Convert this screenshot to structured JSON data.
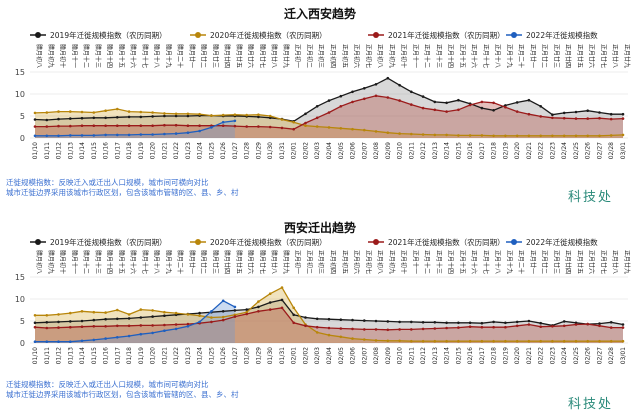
{
  "chart_data": [
    {
      "type": "area",
      "title": "迁入西安趋势",
      "legend": [
        {
          "name": "2019年迁徙规模指数（农历同期）",
          "color": "#1a1a1a"
        },
        {
          "name": "2020年迁徙规模指数（农历同期）",
          "color": "#b8860b"
        },
        {
          "name": "2021年迁徙规模指数（农历同期）",
          "color": "#9b1b1b"
        },
        {
          "name": "2022年迁徙规模指数",
          "color": "#1f5fbf"
        }
      ],
      "ylim": [
        0,
        15
      ],
      "yticks": [
        0,
        5,
        10,
        15
      ],
      "x_dates": [
        "01/10",
        "01/11",
        "01/12",
        "01/13",
        "01/14",
        "01/15",
        "01/16",
        "01/17",
        "01/18",
        "01/19",
        "01/20",
        "01/21",
        "01/22",
        "01/23",
        "01/24",
        "01/25",
        "01/26",
        "01/27",
        "01/28",
        "01/29",
        "01/30",
        "01/31",
        "02/01",
        "02/02",
        "02/03",
        "02/04",
        "02/05",
        "02/06",
        "02/07",
        "02/08",
        "02/09",
        "02/10",
        "02/11",
        "02/12",
        "02/13",
        "02/14",
        "02/15",
        "02/16",
        "02/17",
        "02/18",
        "02/19",
        "02/20",
        "02/21",
        "02/22",
        "02/23",
        "02/24",
        "02/25",
        "02/26",
        "02/27",
        "02/28",
        "03/01"
      ],
      "x_lunar": [
        "腊月初八",
        "腊月初九",
        "腊月初十",
        "腊月十一",
        "腊月十二",
        "腊月十三",
        "腊月十四",
        "腊月十五",
        "腊月十六",
        "腊月十七",
        "腊月十八",
        "腊月十九",
        "腊月二十",
        "腊月廿一",
        "腊月廿二",
        "腊月廿三",
        "腊月廿四",
        "腊月廿五",
        "腊月廿六",
        "腊月廿七",
        "腊月廿八",
        "腊月廿九",
        "正月初一",
        "正月初二",
        "正月初三",
        "正月初四",
        "正月初五",
        "正月初六",
        "正月初七",
        "正月初八",
        "正月初九",
        "正月初十",
        "正月十一",
        "正月十二",
        "正月十三",
        "正月十四",
        "正月十五",
        "正月十六",
        "正月十七",
        "正月十八",
        "正月十九",
        "正月二十",
        "正月廿一",
        "正月廿二",
        "正月廿三",
        "正月廿四",
        "正月廿五",
        "正月廿六",
        "正月廿七",
        "正月廿八",
        "正月廿九"
      ],
      "series": [
        {
          "name": "2019年迁徙规模指数（农历同期）",
          "color": "#1a1a1a",
          "values": [
            4.2,
            4.1,
            4.3,
            4.4,
            4.5,
            4.6,
            4.6,
            4.7,
            4.8,
            4.8,
            4.9,
            5.0,
            5.0,
            5.0,
            5.1,
            5.1,
            5.0,
            5.0,
            4.9,
            4.8,
            4.6,
            4.3,
            3.8,
            5.5,
            7.2,
            8.5,
            9.5,
            10.5,
            11.3,
            12.2,
            13.6,
            12.0,
            10.5,
            9.4,
            8.2,
            8.0,
            8.6,
            7.8,
            6.8,
            6.3,
            7.4,
            8.1,
            8.6,
            7.2,
            5.3,
            5.7,
            5.9,
            6.2,
            5.8,
            5.4,
            5.4
          ]
        },
        {
          "name": "2020年迁徙规模指数（农历同期）",
          "color": "#b8860b",
          "values": [
            5.7,
            5.8,
            6.0,
            6.0,
            5.9,
            5.8,
            6.2,
            6.6,
            6.0,
            5.9,
            5.8,
            5.6,
            5.5,
            5.5,
            5.4,
            5.1,
            5.2,
            5.3,
            5.2,
            5.3,
            5.0,
            4.2,
            3.6,
            2.8,
            2.6,
            2.4,
            2.2,
            2.0,
            1.8,
            1.5,
            1.2,
            1.0,
            0.9,
            0.8,
            0.7,
            0.7,
            0.6,
            0.6,
            0.6,
            0.5,
            0.5,
            0.5,
            0.5,
            0.5,
            0.5,
            0.5,
            0.5,
            0.5,
            0.5,
            0.6,
            0.7
          ]
        },
        {
          "name": "2021年迁徙规模指数（农历同期）",
          "color": "#9b1b1b",
          "values": [
            2.6,
            2.6,
            2.7,
            2.7,
            2.8,
            2.8,
            2.8,
            2.8,
            2.8,
            2.8,
            2.8,
            2.9,
            2.9,
            2.8,
            2.8,
            2.8,
            2.8,
            2.7,
            2.6,
            2.6,
            2.5,
            2.3,
            2.0,
            3.4,
            4.6,
            5.8,
            7.2,
            8.2,
            8.9,
            9.6,
            9.2,
            8.5,
            7.6,
            6.8,
            6.4,
            6.0,
            6.4,
            7.5,
            8.2,
            8.0,
            7.0,
            6.0,
            5.4,
            4.9,
            4.6,
            4.5,
            4.4,
            4.4,
            4.5,
            4.3,
            4.4
          ]
        },
        {
          "name": "2022年迁徙规模指数",
          "color": "#1f5fbf",
          "values": [
            0.5,
            0.5,
            0.5,
            0.6,
            0.6,
            0.6,
            0.7,
            0.7,
            0.7,
            0.8,
            0.8,
            0.9,
            1.0,
            1.2,
            1.6,
            2.4,
            3.6,
            3.9,
            null,
            null,
            null,
            null,
            null,
            null,
            null,
            null,
            null,
            null,
            null,
            null,
            null,
            null,
            null,
            null,
            null,
            null,
            null,
            null,
            null,
            null,
            null,
            null,
            null,
            null,
            null,
            null,
            null,
            null,
            null,
            null,
            null
          ]
        }
      ],
      "note": [
        "迁徙规模指数：反映迁入或迁出人口规模，城市间可横向对比",
        "城市迁徙边界采用该城市行政区划，包含该城市管辖的区、县、乡、村"
      ],
      "signature": "科技处"
    },
    {
      "type": "area",
      "title": "西安迁出趋势",
      "legend": [
        {
          "name": "2019年迁徙规模指数（农历同期）",
          "color": "#1a1a1a"
        },
        {
          "name": "2020年迁徙规模指数（农历同期）",
          "color": "#b8860b"
        },
        {
          "name": "2021年迁徙规模指数（农历同期）",
          "color": "#9b1b1b"
        },
        {
          "name": "2022年迁徙规模指数",
          "color": "#1f5fbf"
        }
      ],
      "ylim": [
        0,
        15
      ],
      "yticks": [
        0,
        5,
        10,
        15
      ],
      "x_dates": [
        "01/10",
        "01/11",
        "01/12",
        "01/13",
        "01/14",
        "01/15",
        "01/16",
        "01/17",
        "01/18",
        "01/19",
        "01/20",
        "01/21",
        "01/22",
        "01/23",
        "01/24",
        "01/25",
        "01/26",
        "01/27",
        "01/28",
        "01/29",
        "01/30",
        "01/31",
        "02/01",
        "02/02",
        "02/03",
        "02/04",
        "02/05",
        "02/06",
        "02/07",
        "02/08",
        "02/09",
        "02/10",
        "02/11",
        "02/12",
        "02/13",
        "02/14",
        "02/15",
        "02/16",
        "02/17",
        "02/18",
        "02/19",
        "02/20",
        "02/21",
        "02/22",
        "02/23",
        "02/24",
        "02/25",
        "02/26",
        "02/27",
        "02/28",
        "03/01"
      ],
      "x_lunar": [
        "腊月初八",
        "腊月初九",
        "腊月初十",
        "腊月十一",
        "腊月十二",
        "腊月十三",
        "腊月十四",
        "腊月十五",
        "腊月十六",
        "腊月十七",
        "腊月十八",
        "腊月十九",
        "腊月二十",
        "腊月廿一",
        "腊月廿二",
        "腊月廿三",
        "腊月廿四",
        "腊月廿五",
        "腊月廿六",
        "腊月廿七",
        "腊月廿八",
        "腊月廿九",
        "正月初一",
        "正月初二",
        "正月初三",
        "正月初四",
        "正月初五",
        "正月初六",
        "正月初七",
        "正月初八",
        "正月初九",
        "正月初十",
        "正月十一",
        "正月十二",
        "正月十三",
        "正月十四",
        "正月十五",
        "正月十六",
        "正月十七",
        "正月十八",
        "正月十九",
        "正月二十",
        "正月廿一",
        "正月廿二",
        "正月廿三",
        "正月廿四",
        "正月廿五",
        "正月廿六",
        "正月廿七",
        "正月廿八",
        "正月廿九"
      ],
      "series": [
        {
          "name": "2019年迁徙规模指数（农历同期）",
          "color": "#1a1a1a",
          "values": [
            4.6,
            4.7,
            4.8,
            4.9,
            5.0,
            5.2,
            5.4,
            5.5,
            5.6,
            5.8,
            6.0,
            6.2,
            6.4,
            6.6,
            6.8,
            7.0,
            7.2,
            7.4,
            7.6,
            8.2,
            9.2,
            9.8,
            6.4,
            5.8,
            5.5,
            5.4,
            5.3,
            5.2,
            5.1,
            5.0,
            4.9,
            4.8,
            4.8,
            4.7,
            4.7,
            4.6,
            4.6,
            4.6,
            4.5,
            4.8,
            4.6,
            4.8,
            5.0,
            4.5,
            4.0,
            4.9,
            4.6,
            4.3,
            4.4,
            4.7,
            4.2
          ]
        },
        {
          "name": "2020年迁徙规模指数（农历同期）",
          "color": "#b8860b",
          "values": [
            6.3,
            6.3,
            6.5,
            6.8,
            7.2,
            7.0,
            6.9,
            7.5,
            6.5,
            7.6,
            7.4,
            7.0,
            6.8,
            6.5,
            6.2,
            5.8,
            5.9,
            6.4,
            7.0,
            9.4,
            11.2,
            12.6,
            8.0,
            4.2,
            2.4,
            1.8,
            1.4,
            1.0,
            0.8,
            0.6,
            0.5,
            0.5,
            0.4,
            0.4,
            0.4,
            0.4,
            0.4,
            0.4,
            0.4,
            0.4,
            0.4,
            0.4,
            0.4,
            0.4,
            0.4,
            0.4,
            0.4,
            0.4,
            0.4,
            0.4,
            0.4
          ]
        },
        {
          "name": "2021年迁徙规模指数（农历同期）",
          "color": "#9b1b1b",
          "values": [
            3.6,
            3.4,
            3.5,
            3.6,
            3.7,
            3.8,
            3.8,
            3.9,
            3.9,
            4.0,
            4.0,
            4.1,
            4.2,
            4.3,
            4.5,
            4.8,
            5.2,
            6.0,
            6.6,
            7.2,
            7.6,
            8.0,
            4.6,
            3.9,
            3.6,
            3.4,
            3.3,
            3.2,
            3.1,
            3.1,
            3.0,
            3.1,
            3.1,
            3.2,
            3.3,
            3.4,
            3.5,
            3.7,
            3.6,
            3.6,
            3.6,
            3.9,
            4.2,
            3.7,
            3.8,
            3.9,
            4.2,
            4.3,
            3.9,
            3.5,
            3.5
          ]
        },
        {
          "name": "2022年迁徙规模指数",
          "color": "#1f5fbf",
          "values": [
            0.3,
            0.3,
            0.3,
            0.3,
            0.5,
            0.7,
            1.0,
            1.3,
            1.6,
            2.0,
            2.3,
            2.8,
            3.2,
            3.8,
            4.8,
            7.2,
            9.6,
            8.2,
            null,
            null,
            null,
            null,
            null,
            null,
            null,
            null,
            null,
            null,
            null,
            null,
            null,
            null,
            null,
            null,
            null,
            null,
            null,
            null,
            null,
            null,
            null,
            null,
            null,
            null,
            null,
            null,
            null,
            null,
            null,
            null,
            null
          ]
        }
      ],
      "note": [
        "迁徙规模指数：反映迁入或迁出人口规模，城市间可横向对比",
        "城市迁徙边界采用该城市行政区划，包含该城市管辖的区、县、乡、村"
      ],
      "signature": "科技处"
    }
  ]
}
